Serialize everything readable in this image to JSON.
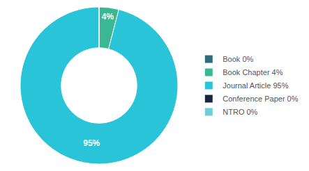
{
  "chart_data": {
    "type": "pie",
    "categories": [
      "Book 0%",
      "Book Chapter 4%",
      "Journal Article 95%",
      "Conference Paper 0%",
      "NTRO 0%"
    ],
    "values": [
      0.0001,
      4,
      95,
      0.0001,
      0.0001
    ],
    "value_labels": [
      null,
      "4%",
      "95%",
      null,
      null
    ],
    "colors": [
      "#2d6b7a",
      "#3ab893",
      "#29c4d8",
      "#1a2440",
      "#6dcdd8"
    ],
    "data_labels": true,
    "legend": "right"
  }
}
